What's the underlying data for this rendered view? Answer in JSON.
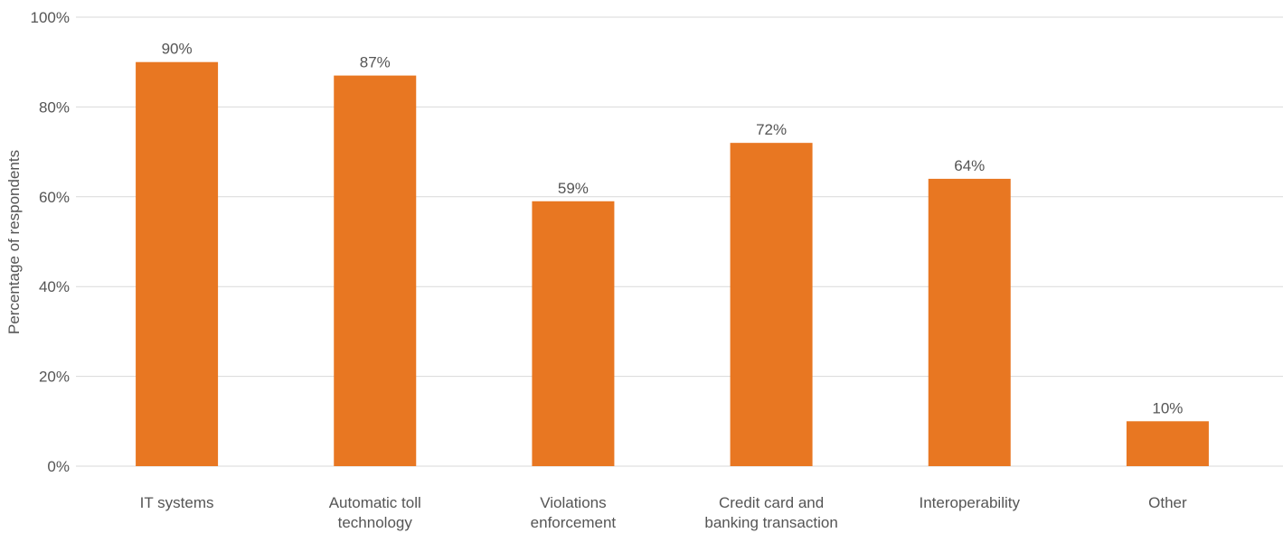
{
  "chart_data": {
    "type": "bar",
    "title": "",
    "xlabel": "",
    "ylabel": "Percentage of respondents",
    "ylim": [
      0,
      100
    ],
    "yticks": [
      "0%",
      "20%",
      "40%",
      "60%",
      "80%",
      "100%"
    ],
    "ytick_values": [
      0,
      20,
      40,
      60,
      80,
      100
    ],
    "grid": true,
    "legend": "none",
    "bar_color": "#e87722",
    "categories": [
      [
        "IT systems"
      ],
      [
        "Automatic toll",
        "technology"
      ],
      [
        "Violations",
        "enforcement"
      ],
      [
        "Credit card and",
        "banking transaction"
      ],
      [
        "Interoperability"
      ],
      [
        "Other"
      ]
    ],
    "values": [
      90,
      87,
      59,
      72,
      64,
      10
    ],
    "data_labels": [
      "90%",
      "87%",
      "59%",
      "72%",
      "64%",
      "10%"
    ]
  }
}
